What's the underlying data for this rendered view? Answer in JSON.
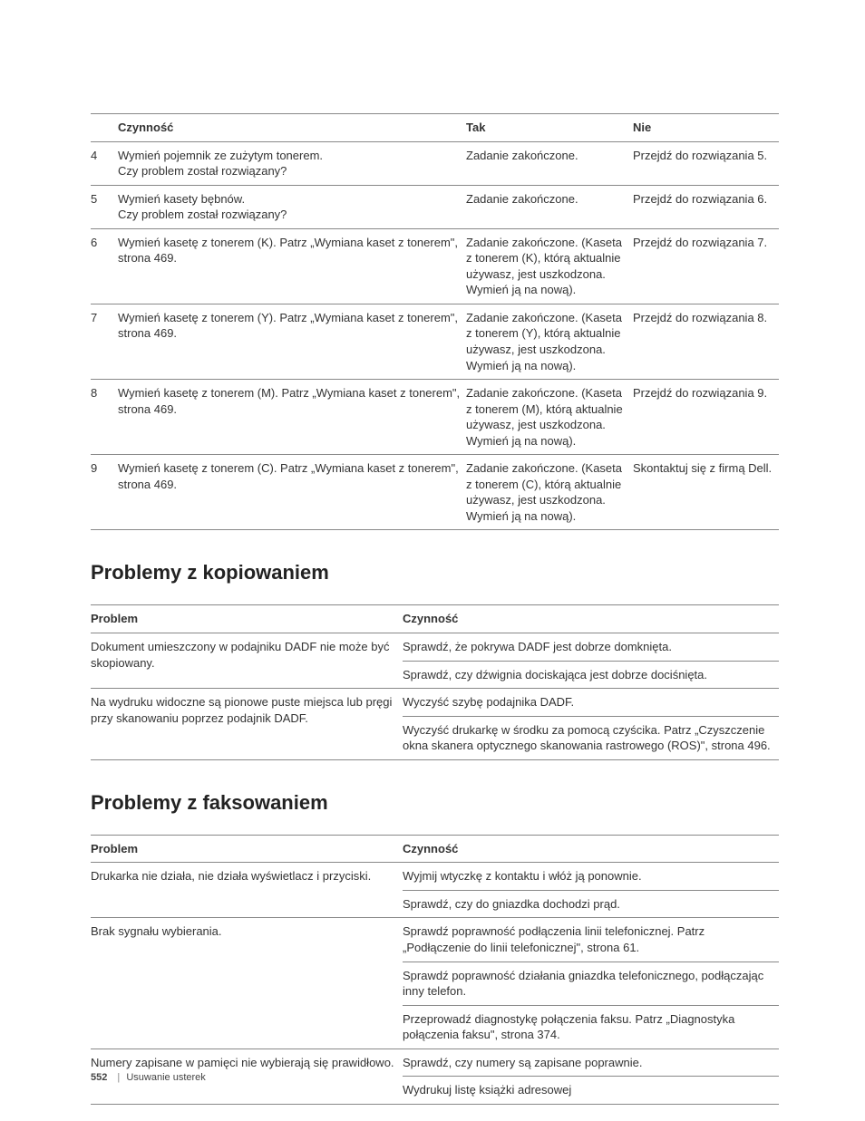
{
  "table1": {
    "headers": [
      "",
      "Czynność",
      "Tak",
      "Nie"
    ],
    "rows": [
      {
        "n": "4",
        "act": "Wymień pojemnik ze zużytym tonerem.\nCzy problem został rozwiązany?",
        "yes": "Zadanie zakończone.",
        "no": "Przejdź do rozwiązania 5."
      },
      {
        "n": "5",
        "act": "Wymień kasety bębnów.\nCzy problem został rozwiązany?",
        "yes": "Zadanie zakończone.",
        "no": "Przejdź do rozwiązania 6."
      },
      {
        "n": "6",
        "act": "Wymień kasetę z tonerem (K). Patrz „Wymiana kaset z tonerem\", strona 469.",
        "yes": "Zadanie zakończone. (Kaseta z tonerem (K), którą aktualnie używasz, jest uszkodzona. Wymień ją na nową).",
        "no": "Przejdź do rozwiązania 7."
      },
      {
        "n": "7",
        "act": "Wymień kasetę z tonerem (Y). Patrz „Wymiana kaset z tonerem\", strona 469.",
        "yes": "Zadanie zakończone. (Kaseta z tonerem (Y), którą aktualnie używasz, jest uszkodzona. Wymień ją na nową).",
        "no": "Przejdź do rozwiązania 8."
      },
      {
        "n": "8",
        "act": "Wymień kasetę z tonerem (M). Patrz „Wymiana kaset z tonerem\", strona 469.",
        "yes": "Zadanie zakończone. (Kaseta z tonerem (M), którą aktualnie używasz, jest uszkodzona. Wymień ją na nową).",
        "no": "Przejdź do rozwiązania 9."
      },
      {
        "n": "9",
        "act": "Wymień kasetę z tonerem (C). Patrz „Wymiana kaset z tonerem\", strona 469.",
        "yes": "Zadanie zakończone. (Kaseta z tonerem (C), którą aktualnie używasz, jest uszkodzona. Wymień ją na nową).",
        "no": "Skontaktuj się z firmą Dell."
      }
    ]
  },
  "section2": {
    "title": "Problemy z kopiowaniem",
    "headers": [
      "Problem",
      "Czynność"
    ],
    "groups": [
      {
        "problem": "Dokument umieszczony w podajniku DADF nie może być skopiowany.",
        "actions": [
          "Sprawdź, że pokrywa DADF jest dobrze domknięta.",
          "Sprawdź, czy dźwignia dociskająca jest dobrze dociśnięta."
        ]
      },
      {
        "problem": "Na wydruku widoczne są pionowe puste miejsca lub pręgi przy skanowaniu poprzez podajnik DADF.",
        "actions": [
          "Wyczyść szybę podajnika DADF.",
          "Wyczyść drukarkę w środku za pomocą czyścika. Patrz „Czyszczenie okna skanera optycznego skanowania rastrowego (ROS)\", strona 496."
        ]
      }
    ]
  },
  "section3": {
    "title": "Problemy z faksowaniem",
    "headers": [
      "Problem",
      "Czynność"
    ],
    "groups": [
      {
        "problem": "Drukarka nie działa, nie działa wyświetlacz i przyciski.",
        "actions": [
          "Wyjmij wtyczkę z kontaktu i włóż ją ponownie.",
          "Sprawdź, czy do gniazdka dochodzi prąd."
        ]
      },
      {
        "problem": "Brak sygnału wybierania.",
        "actions": [
          "Sprawdź poprawność podłączenia linii telefonicznej. Patrz „Podłączenie do linii telefonicznej\", strona 61.",
          "Sprawdź poprawność działania gniazdka telefonicznego, podłączając inny telefon.",
          "Przeprowadź diagnostykę połączenia faksu. Patrz „Diagnostyka połączenia faksu\", strona 374."
        ]
      },
      {
        "problem": "Numery zapisane w pamięci nie wybierają się prawidłowo.",
        "actions": [
          "Sprawdź, czy numery są zapisane poprawnie.",
          "Wydrukuj listę książki adresowej"
        ]
      }
    ]
  },
  "footer": {
    "page": "552",
    "section": "Usuwanie usterek"
  }
}
